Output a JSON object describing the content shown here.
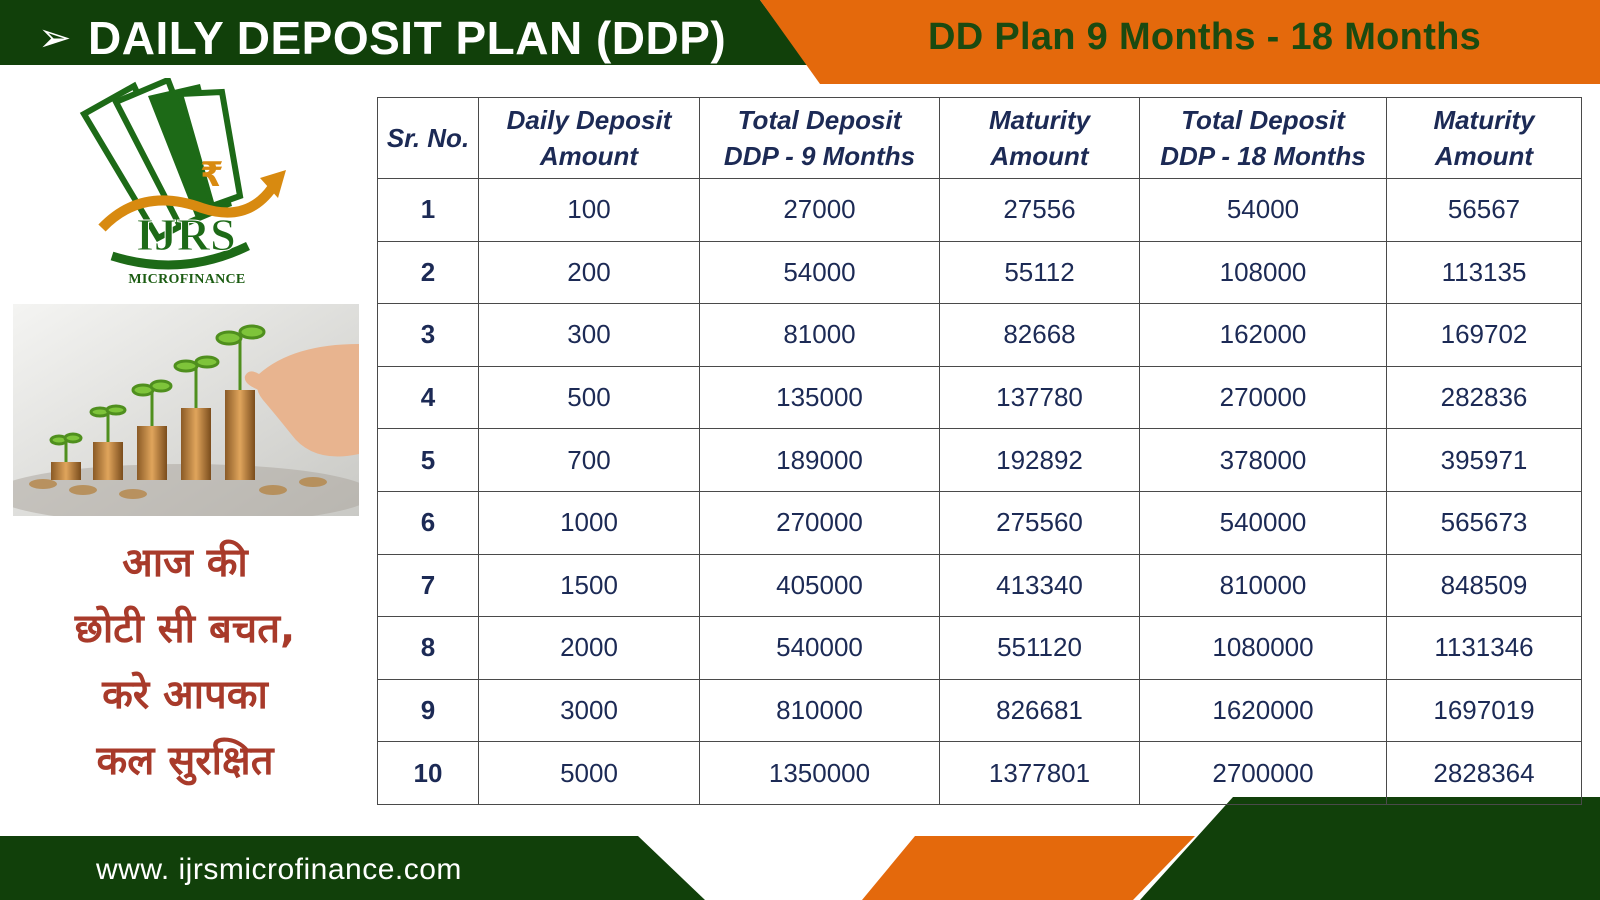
{
  "header": {
    "arrow_glyph": "➢",
    "title": "DAILY DEPOSIT PLAN (DDP)",
    "plan_label": "DD Plan 9 Months - 18 Months"
  },
  "logo": {
    "brand": "IJRS",
    "sub": "MICROFINANCE",
    "currency_symbol": "₹"
  },
  "slogan": {
    "line1": "आज की",
    "line2": "छोटी सी बचत,",
    "line3": "करे आपका",
    "line4": "कल सुरक्षित"
  },
  "table": {
    "headers": {
      "sr": "Sr. No.",
      "daily_1": "Daily Deposit",
      "daily_2": "Amount",
      "td9_1": "Total Deposit",
      "td9_2": "DDP - 9 Months",
      "mat9_1": "Maturity",
      "mat9_2": "Amount",
      "td18_1": "Total Deposit",
      "td18_2": "DDP - 18 Months",
      "mat18_1": "Maturity",
      "mat18_2": "Amount"
    },
    "rows": [
      [
        "1",
        "100",
        "27000",
        "27556",
        "54000",
        "56567"
      ],
      [
        "2",
        "200",
        "54000",
        "55112",
        "108000",
        "113135"
      ],
      [
        "3",
        "300",
        "81000",
        "82668",
        "162000",
        "169702"
      ],
      [
        "4",
        "500",
        "135000",
        "137780",
        "270000",
        "282836"
      ],
      [
        "5",
        "700",
        "189000",
        "192892",
        "378000",
        "395971"
      ],
      [
        "6",
        "1000",
        "270000",
        "275560",
        "540000",
        "565673"
      ],
      [
        "7",
        "1500",
        "405000",
        "413340",
        "810000",
        "848509"
      ],
      [
        "8",
        "2000",
        "540000",
        "551120",
        "1080000",
        "1131346"
      ],
      [
        "9",
        "3000",
        "810000",
        "826681",
        "1620000",
        "1697019"
      ],
      [
        "10",
        "5000",
        "1350000",
        "1377801",
        "2700000",
        "2828364"
      ]
    ]
  },
  "footer": {
    "url": "www. ijrsmicrofinance.com"
  },
  "colors": {
    "dark_green": "#11400a",
    "orange": "#e4690c",
    "table_text": "#1c2a55",
    "hindi_red": "#a83a2a"
  }
}
